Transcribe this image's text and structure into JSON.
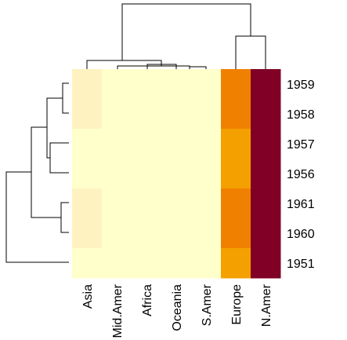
{
  "chart_data": {
    "type": "heatmap",
    "title": "",
    "xlabel": "",
    "ylabel": "",
    "columns": [
      "Asia",
      "Mid.Amer",
      "Africa",
      "Oceania",
      "S.Amer",
      "Europe",
      "N.Amer"
    ],
    "rows": [
      "1959",
      "1958",
      "1957",
      "1956",
      "1961",
      "1960",
      "1951"
    ],
    "colors": {
      "low": "#FFFFCC",
      "low_mid": "#FEF3C0",
      "mid_orange": "#F07F00",
      "orange": "#F4A000",
      "high": "#800026"
    },
    "cell_colors": [
      [
        "#FEF3C0",
        "#FFFFCC",
        "#FFFFCC",
        "#FFFFCC",
        "#FFFFCC",
        "#F08000",
        "#800026"
      ],
      [
        "#FEF3C0",
        "#FFFFCC",
        "#FFFFCC",
        "#FFFFCC",
        "#FFFFCC",
        "#F08000",
        "#800026"
      ],
      [
        "#FFFFCC",
        "#FFFFCC",
        "#FFFFCC",
        "#FFFFCC",
        "#FFFFCC",
        "#F4A000",
        "#800026"
      ],
      [
        "#FFFFCC",
        "#FFFFCC",
        "#FFFFCC",
        "#FFFFCC",
        "#FFFFCC",
        "#F4A000",
        "#800026"
      ],
      [
        "#FEF3C0",
        "#FFFFCC",
        "#FFFFCC",
        "#FFFFCC",
        "#FFFFCC",
        "#F08000",
        "#800026"
      ],
      [
        "#FEF3C0",
        "#FFFFCC",
        "#FFFFCC",
        "#FFFFCC",
        "#FFFFCC",
        "#F08000",
        "#800026"
      ],
      [
        "#FFFFCC",
        "#FFFFCC",
        "#FFFFCC",
        "#FFFFCC",
        "#FFFFCC",
        "#F4A000",
        "#800026"
      ]
    ],
    "row_dendrogram": true,
    "column_dendrogram": true
  }
}
